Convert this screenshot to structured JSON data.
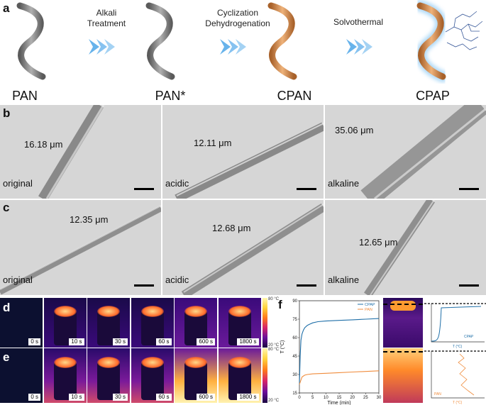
{
  "panels": {
    "a": "a",
    "b": "b",
    "c": "c",
    "d": "d",
    "e": "e",
    "f": "f"
  },
  "process": {
    "steps": [
      {
        "line1": "Alkali",
        "line2": "Treatment"
      },
      {
        "line1": "Cyclization",
        "line2": "Dehydrogenation"
      },
      {
        "line1": "Solvothermal",
        "line2": ""
      }
    ],
    "names": [
      "PAN",
      "PAN*",
      "CPAN",
      "CPAP"
    ],
    "colors": {
      "gray": "#8c8c8c",
      "orange": "#d9954f",
      "arrow": "#4da6e8"
    }
  },
  "micrographs_b": [
    {
      "condition": "original",
      "measure": "16.18 μm"
    },
    {
      "condition": "acidic",
      "measure": "12.11 μm"
    },
    {
      "condition": "alkaline",
      "measure": "35.06 μm"
    }
  ],
  "micrographs_c": [
    {
      "condition": "original",
      "measure": "12.35 μm"
    },
    {
      "condition": "acidic",
      "measure": "12.68 μm"
    },
    {
      "condition": "alkaline",
      "measure": "12.65 μm"
    }
  ],
  "thermal": {
    "times": [
      "0 s",
      "10 s",
      "30 s",
      "60 s",
      "600 s",
      "1800 s"
    ],
    "colorbar_top": "80 °C",
    "colorbar_bottom": "20 °C"
  },
  "chart_data": {
    "type": "line",
    "xlabel": "Time (min)",
    "ylabel": "T (°C)",
    "xlim": [
      0,
      30
    ],
    "ylim": [
      15,
      90
    ],
    "xticks": [
      "0",
      "5",
      "10",
      "15",
      "20",
      "25",
      "30"
    ],
    "yticks": [
      "15",
      "30",
      "45",
      "60",
      "75",
      "90"
    ],
    "legend": "top-right",
    "series": [
      {
        "name": "CPAP",
        "color": "#1f6fa8",
        "x": [
          0,
          0.3,
          0.6,
          1,
          1.5,
          2,
          3,
          4,
          5,
          7,
          10,
          15,
          20,
          25,
          30
        ],
        "y": [
          22,
          45,
          58,
          63,
          66,
          68,
          70,
          71,
          72,
          73,
          73.5,
          74,
          74.5,
          75,
          75.5
        ]
      },
      {
        "name": "PAN",
        "color": "#f08c3c",
        "x": [
          0,
          1,
          2,
          3,
          5,
          10,
          15,
          20,
          25,
          30
        ],
        "y": [
          22,
          28,
          29.5,
          30,
          30.5,
          31,
          31.5,
          32,
          32.5,
          33
        ]
      }
    ]
  },
  "small_charts": {
    "top_legend": "CPAP",
    "bottom_legend": "PAN",
    "top_xlabel": "T (°C)",
    "bottom_xlabel": "T (°C)",
    "top_xticks": [
      "30",
      "40",
      "50",
      "60",
      "70",
      "80"
    ],
    "bottom_xticks": [
      "20",
      "25",
      "30",
      "35"
    ]
  }
}
